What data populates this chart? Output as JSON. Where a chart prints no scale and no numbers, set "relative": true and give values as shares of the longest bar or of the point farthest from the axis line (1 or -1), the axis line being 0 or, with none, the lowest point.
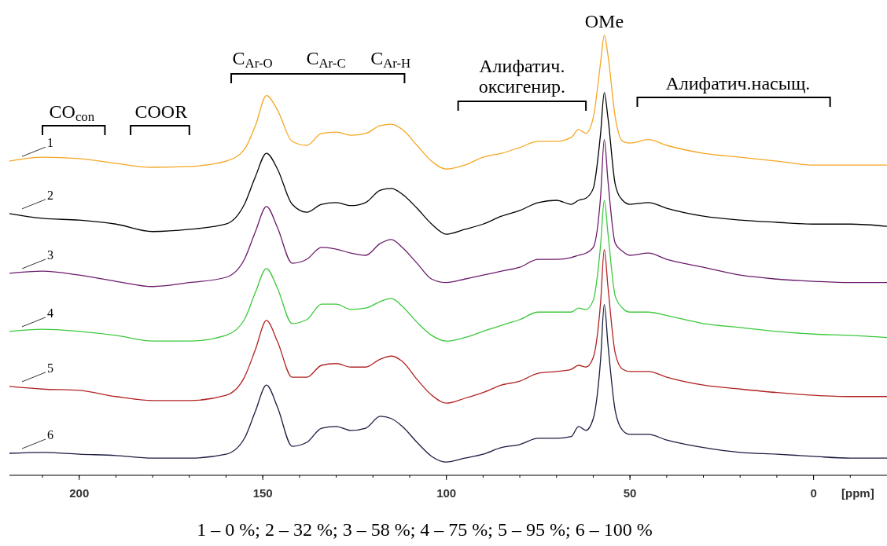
{
  "chart_data": {
    "type": "line",
    "relative": true,
    "xlabel": "[ppm]",
    "xlim": [
      219,
      -20
    ],
    "xticks": [
      200,
      150,
      100,
      50,
      0
    ],
    "grid": false,
    "x": [
      219,
      210,
      200,
      190,
      180,
      170,
      160,
      155,
      152,
      149,
      146,
      142,
      138,
      134,
      130,
      126,
      122,
      118,
      115,
      112,
      108,
      104,
      100,
      95,
      90,
      85,
      80,
      75,
      70,
      66,
      64,
      62,
      60,
      58,
      57,
      56,
      54,
      52,
      50,
      45,
      40,
      30,
      20,
      10,
      0,
      -10,
      -20
    ],
    "series": [
      {
        "name": "1",
        "color": "#f5a623",
        "values": [
          0.714,
          0.723,
          0.72,
          0.709,
          0.7,
          0.702,
          0.714,
          0.741,
          0.795,
          0.863,
          0.83,
          0.759,
          0.75,
          0.777,
          0.78,
          0.773,
          0.777,
          0.795,
          0.798,
          0.786,
          0.75,
          0.714,
          0.696,
          0.705,
          0.723,
          0.732,
          0.745,
          0.759,
          0.759,
          0.768,
          0.786,
          0.777,
          0.813,
          0.938,
          1,
          0.955,
          0.813,
          0.759,
          0.755,
          0.763,
          0.75,
          0.732,
          0.723,
          0.714,
          0.705,
          0.705,
          0.705
        ]
      },
      {
        "name": "2",
        "color": "#000000",
        "values": [
          0.595,
          0.584,
          0.58,
          0.571,
          0.554,
          0.559,
          0.571,
          0.616,
          0.679,
          0.732,
          0.696,
          0.616,
          0.598,
          0.616,
          0.62,
          0.613,
          0.62,
          0.648,
          0.652,
          0.639,
          0.607,
          0.571,
          0.548,
          0.559,
          0.571,
          0.589,
          0.602,
          0.62,
          0.625,
          0.616,
          0.625,
          0.63,
          0.652,
          0.777,
          0.87,
          0.813,
          0.661,
          0.625,
          0.616,
          0.62,
          0.607,
          0.589,
          0.58,
          0.575,
          0.571,
          0.571,
          0.566
        ]
      },
      {
        "name": "3",
        "color": "#6a1b6a",
        "values": [
          0.459,
          0.464,
          0.455,
          0.441,
          0.429,
          0.438,
          0.45,
          0.491,
          0.554,
          0.611,
          0.563,
          0.482,
          0.491,
          0.518,
          0.514,
          0.505,
          0.5,
          0.527,
          0.536,
          0.518,
          0.482,
          0.446,
          0.438,
          0.446,
          0.455,
          0.464,
          0.473,
          0.491,
          0.491,
          0.495,
          0.5,
          0.505,
          0.518,
          0.634,
          0.763,
          0.67,
          0.527,
          0.509,
          0.5,
          0.505,
          0.491,
          0.473,
          0.455,
          0.446,
          0.441,
          0.438,
          0.438
        ]
      },
      {
        "name": "4",
        "color": "#3cc83c",
        "values": [
          0.327,
          0.332,
          0.327,
          0.318,
          0.305,
          0.305,
          0.318,
          0.354,
          0.416,
          0.47,
          0.425,
          0.345,
          0.354,
          0.389,
          0.389,
          0.377,
          0.38,
          0.395,
          0.402,
          0.384,
          0.348,
          0.318,
          0.305,
          0.313,
          0.327,
          0.341,
          0.354,
          0.371,
          0.371,
          0.371,
          0.38,
          0.377,
          0.398,
          0.523,
          0.625,
          0.55,
          0.407,
          0.38,
          0.371,
          0.371,
          0.363,
          0.345,
          0.336,
          0.327,
          0.321,
          0.318,
          0.313
        ]
      },
      {
        "name": "5",
        "color": "#b22222",
        "values": [
          0.202,
          0.196,
          0.193,
          0.179,
          0.17,
          0.17,
          0.182,
          0.223,
          0.286,
          0.352,
          0.304,
          0.223,
          0.223,
          0.25,
          0.254,
          0.246,
          0.246,
          0.264,
          0.271,
          0.259,
          0.218,
          0.182,
          0.164,
          0.175,
          0.188,
          0.205,
          0.214,
          0.232,
          0.236,
          0.241,
          0.25,
          0.246,
          0.268,
          0.393,
          0.513,
          0.429,
          0.277,
          0.241,
          0.236,
          0.236,
          0.223,
          0.205,
          0.196,
          0.188,
          0.182,
          0.179,
          0.179
        ]
      },
      {
        "name": "6",
        "color": "#1a1a40",
        "values": [
          0.05,
          0.052,
          0.048,
          0.045,
          0.039,
          0.039,
          0.048,
          0.084,
          0.146,
          0.205,
          0.155,
          0.066,
          0.075,
          0.107,
          0.111,
          0.102,
          0.107,
          0.134,
          0.129,
          0.111,
          0.075,
          0.043,
          0.03,
          0.039,
          0.048,
          0.063,
          0.07,
          0.084,
          0.084,
          0.088,
          0.111,
          0.102,
          0.129,
          0.263,
          0.388,
          0.298,
          0.146,
          0.102,
          0.093,
          0.093,
          0.08,
          0.063,
          0.052,
          0.048,
          0.043,
          0.039,
          0.039
        ]
      }
    ],
    "annotations": [
      "CO$_{con}$",
      "COOR",
      "C$_{Ar-O}$",
      "C$_{Ar-C}$",
      "C$_{Ar-H}$",
      "Алифатич.\nоксигенир.",
      {
        "text": "OMe",
        "x": 57,
        "y": 1
      },
      "Алифатич.насыщ.",
      "1 – 0 %; 2 – 32 %; 3 – 58 %; 4 – 75 %; 5 – 95 %; 6 – 100 %"
    ]
  }
}
